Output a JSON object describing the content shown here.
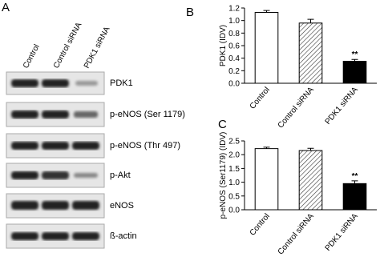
{
  "blot": {
    "panel_label": "A",
    "lanes": [
      "Control",
      "Control siRNA",
      "PDK1 siRNA"
    ],
    "rows": [
      "PDK1",
      "p-eNOS (Ser 1179)",
      "p-eNOS (Thr 497)",
      "p-Akt",
      "eNOS",
      "ß-actin"
    ]
  },
  "chart_data": [
    {
      "type": "bar",
      "panel_label": "B",
      "ylabel": "PDK1 (IDV)",
      "categories": [
        "Control",
        "Control siRNA",
        "PDK1 siRNA"
      ],
      "values": [
        1.13,
        0.96,
        0.35
      ],
      "errors": [
        0.03,
        0.06,
        0.03
      ],
      "bar_styles": [
        "open",
        "hatched",
        "solid"
      ],
      "color": "#000000",
      "annotation": "**",
      "ylim": [
        0,
        1.2
      ],
      "yticks": [
        {
          "value": 0,
          "label": "0.0"
        },
        0.2,
        0.4,
        0.6,
        0.8,
        {
          "value": 1,
          "label": "1.0"
        },
        1.2
      ]
    },
    {
      "type": "bar",
      "panel_label": "C",
      "ylabel": "p-eNOS (Ser1179) (IDV)",
      "categories": [
        "Control",
        "Control siRNA",
        "PDK1 siRNA"
      ],
      "values": [
        2.22,
        2.15,
        0.95
      ],
      "errors": [
        0.05,
        0.08,
        0.1
      ],
      "bar_styles": [
        "open",
        "hatched",
        "solid"
      ],
      "color": "#000000",
      "annotation": "**",
      "ylim": [
        0,
        2.5
      ],
      "yticks": [
        {
          "value": 0,
          "label": "0.0"
        },
        0.5,
        {
          "value": 1,
          "label": "1.0"
        },
        1.5,
        {
          "value": 2,
          "label": "2.0"
        },
        2.5
      ]
    }
  ]
}
